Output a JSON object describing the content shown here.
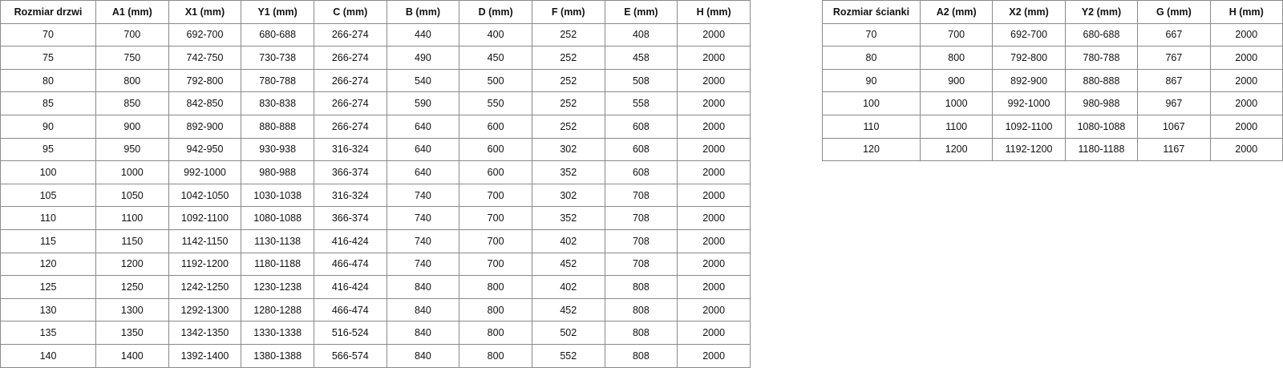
{
  "door_table": {
    "headers": [
      "Rozmiar drzwi",
      "A1 (mm)",
      "X1 (mm)",
      "Y1 (mm)",
      "C (mm)",
      "B (mm)",
      "D (mm)",
      "F (mm)",
      "E (mm)",
      "H (mm)"
    ],
    "rows": [
      [
        "70",
        "700",
        "692-700",
        "680-688",
        "266-274",
        "440",
        "400",
        "252",
        "408",
        "2000"
      ],
      [
        "75",
        "750",
        "742-750",
        "730-738",
        "266-274",
        "490",
        "450",
        "252",
        "458",
        "2000"
      ],
      [
        "80",
        "800",
        "792-800",
        "780-788",
        "266-274",
        "540",
        "500",
        "252",
        "508",
        "2000"
      ],
      [
        "85",
        "850",
        "842-850",
        "830-838",
        "266-274",
        "590",
        "550",
        "252",
        "558",
        "2000"
      ],
      [
        "90",
        "900",
        "892-900",
        "880-888",
        "266-274",
        "640",
        "600",
        "252",
        "608",
        "2000"
      ],
      [
        "95",
        "950",
        "942-950",
        "930-938",
        "316-324",
        "640",
        "600",
        "302",
        "608",
        "2000"
      ],
      [
        "100",
        "1000",
        "992-1000",
        "980-988",
        "366-374",
        "640",
        "600",
        "352",
        "608",
        "2000"
      ],
      [
        "105",
        "1050",
        "1042-1050",
        "1030-1038",
        "316-324",
        "740",
        "700",
        "302",
        "708",
        "2000"
      ],
      [
        "110",
        "1100",
        "1092-1100",
        "1080-1088",
        "366-374",
        "740",
        "700",
        "352",
        "708",
        "2000"
      ],
      [
        "115",
        "1150",
        "1142-1150",
        "1130-1138",
        "416-424",
        "740",
        "700",
        "402",
        "708",
        "2000"
      ],
      [
        "120",
        "1200",
        "1192-1200",
        "1180-1188",
        "466-474",
        "740",
        "700",
        "452",
        "708",
        "2000"
      ],
      [
        "125",
        "1250",
        "1242-1250",
        "1230-1238",
        "416-424",
        "840",
        "800",
        "402",
        "808",
        "2000"
      ],
      [
        "130",
        "1300",
        "1292-1300",
        "1280-1288",
        "466-474",
        "840",
        "800",
        "452",
        "808",
        "2000"
      ],
      [
        "135",
        "1350",
        "1342-1350",
        "1330-1338",
        "516-524",
        "840",
        "800",
        "502",
        "808",
        "2000"
      ],
      [
        "140",
        "1400",
        "1392-1400",
        "1380-1388",
        "566-574",
        "840",
        "800",
        "552",
        "808",
        "2000"
      ]
    ]
  },
  "wall_table": {
    "headers": [
      "Rozmiar ścianki",
      "A2 (mm)",
      "X2 (mm)",
      "Y2 (mm)",
      "G (mm)",
      "H (mm)"
    ],
    "rows": [
      [
        "70",
        "700",
        "692-700",
        "680-688",
        "667",
        "2000"
      ],
      [
        "80",
        "800",
        "792-800",
        "780-788",
        "767",
        "2000"
      ],
      [
        "90",
        "900",
        "892-900",
        "880-888",
        "867",
        "2000"
      ],
      [
        "100",
        "1000",
        "992-1000",
        "980-988",
        "967",
        "2000"
      ],
      [
        "110",
        "1100",
        "1092-1100",
        "1080-1088",
        "1067",
        "2000"
      ],
      [
        "120",
        "1200",
        "1192-1200",
        "1180-1188",
        "1167",
        "2000"
      ]
    ]
  }
}
